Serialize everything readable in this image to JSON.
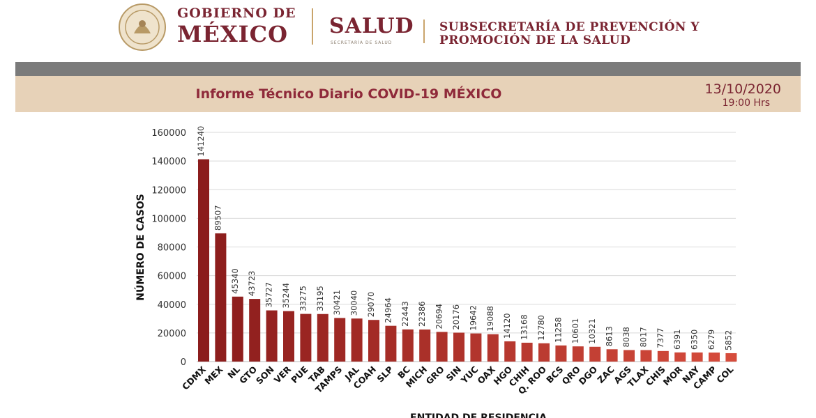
{
  "header": {
    "gov_line1": "GOBIERNO DE",
    "gov_line2": "MÉXICO",
    "salud": "SALUD",
    "salud_sub": "SECRETARÍA DE SALUD",
    "subsec_line1": "SUBSECRETARÍA DE PREVENCIÓN Y",
    "subsec_line2": "PROMOCIÓN DE LA SALUD",
    "seal_icon": "mexico-coat-of-arms-seal"
  },
  "report": {
    "title": "Informe Técnico Diario COVID-19 MÉXICO",
    "date": "13/10/2020",
    "time": "19:00 Hrs"
  },
  "colors": {
    "brand_maroon": "#7a2431",
    "band_dark": "#7b7b7b",
    "band_tan": "#e7d2b8",
    "bar_dark": "#8b1c1c",
    "bar_light": "#d24a3a"
  },
  "chart_data": {
    "type": "bar",
    "xlabel": "ENTIDAD DE RESIDENCIA",
    "ylabel": "NÚMERO DE CASOS",
    "ylim": [
      0,
      160000
    ],
    "yticks": [
      0,
      20000,
      40000,
      60000,
      80000,
      100000,
      120000,
      140000,
      160000
    ],
    "grid": true,
    "categories": [
      "CDMX",
      "MEX",
      "NL",
      "GTO",
      "SON",
      "VER",
      "PUE",
      "TAB",
      "TAMPS",
      "JAL",
      "COAH",
      "SLP",
      "BC",
      "MICH",
      "GRO",
      "SIN",
      "YUC",
      "OAX",
      "HGO",
      "CHIH",
      "Q. ROO",
      "BCS",
      "QRO",
      "DGO",
      "ZAC",
      "AGS",
      "TLAX",
      "CHIS",
      "MOR",
      "NAY",
      "CAMP",
      "COL"
    ],
    "values": [
      141240,
      89507,
      45340,
      43723,
      35727,
      35244,
      33275,
      33195,
      30421,
      30040,
      29070,
      24964,
      22443,
      22386,
      20694,
      20176,
      19642,
      19088,
      14120,
      13168,
      12780,
      11258,
      10601,
      10321,
      8613,
      8038,
      8017,
      7377,
      6391,
      6350,
      6279,
      5852
    ]
  }
}
